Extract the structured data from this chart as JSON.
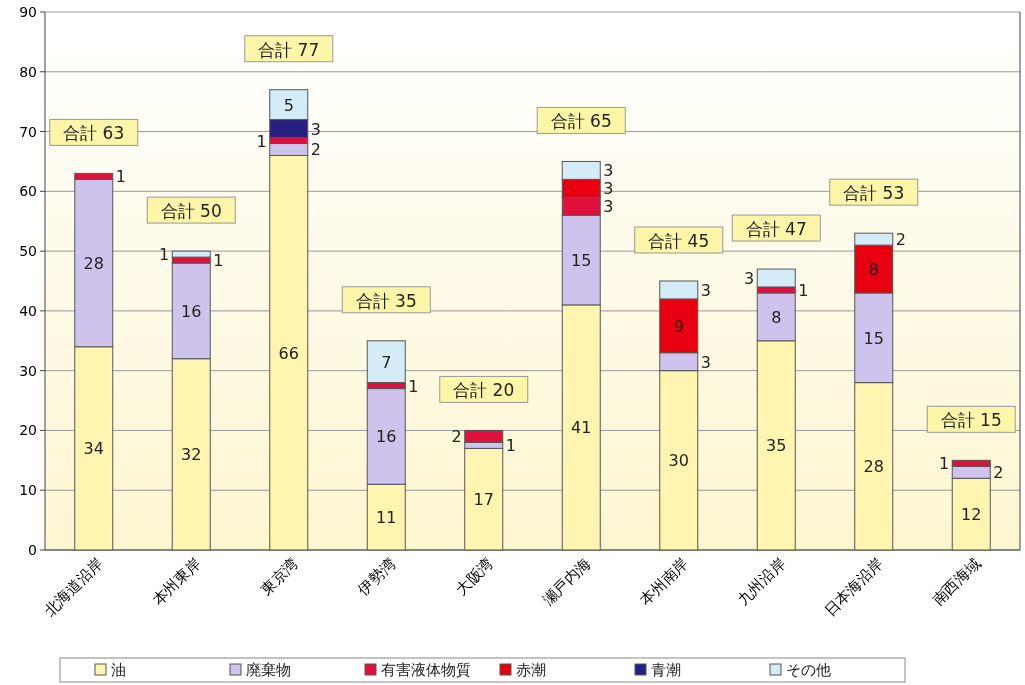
{
  "chart_data": {
    "type": "bar",
    "stacked": true,
    "categories": [
      "北海道沿岸",
      "本州東岸",
      "東京湾",
      "伊勢湾",
      "大阪湾",
      "瀬戸内海",
      "本州南岸",
      "九州沿岸",
      "日本海沿岸",
      "南西海域"
    ],
    "series": [
      {
        "name": "油",
        "color": "#fff5b0",
        "values": [
          34,
          32,
          66,
          11,
          17,
          41,
          30,
          35,
          28,
          12
        ]
      },
      {
        "name": "廃棄物",
        "color": "#cdc3ec",
        "values": [
          28,
          16,
          2,
          16,
          1,
          15,
          3,
          8,
          15,
          2
        ]
      },
      {
        "name": "有害液体物質",
        "color": "#e0103c",
        "values": [
          1,
          1,
          1,
          1,
          2,
          3,
          null,
          1,
          null,
          1
        ]
      },
      {
        "name": "赤潮",
        "color": "#e80010",
        "values": [
          null,
          null,
          null,
          null,
          null,
          3,
          9,
          null,
          8,
          null
        ]
      },
      {
        "name": "青潮",
        "color": "#282080",
        "values": [
          null,
          null,
          3,
          null,
          null,
          null,
          null,
          null,
          null,
          null
        ]
      },
      {
        "name": "その他",
        "color": "#d4ecf8",
        "values": [
          null,
          1,
          5,
          7,
          null,
          3,
          3,
          3,
          2,
          null
        ]
      }
    ],
    "data_labels": true,
    "totals": [
      "合計 63",
      "合計 50",
      "合計 77",
      "合計 35",
      "合計 20",
      "合計 65",
      "合計 45",
      "合計 47",
      "合計 53",
      "合計 15"
    ],
    "ylim": [
      0,
      90
    ],
    "yticks": [
      0,
      10,
      20,
      30,
      40,
      50,
      60,
      70,
      80,
      90
    ],
    "grid": "y",
    "legend": "bottom"
  }
}
